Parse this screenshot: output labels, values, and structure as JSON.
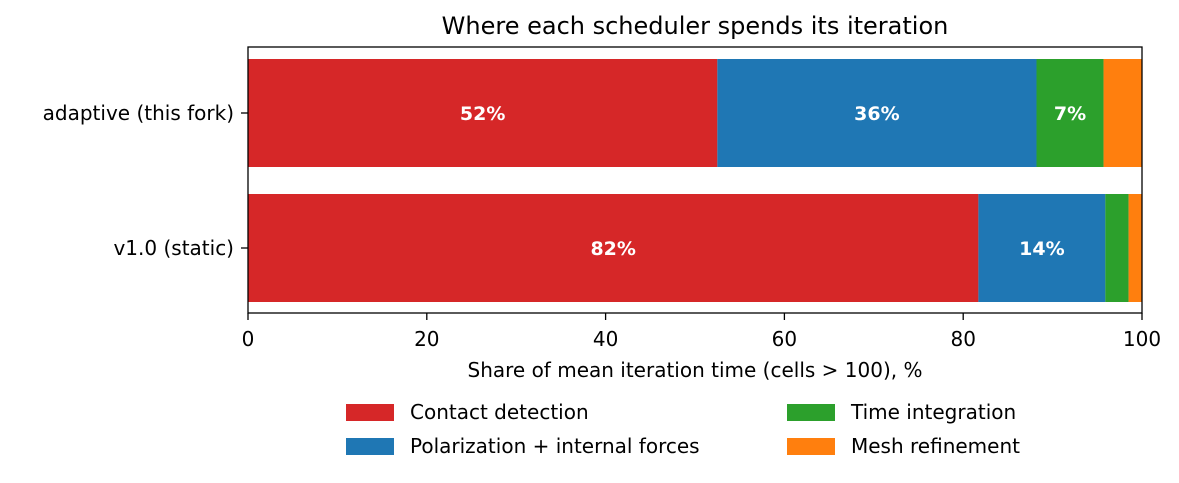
{
  "chart_data": {
    "type": "bar",
    "orientation": "horizontal",
    "stacked": true,
    "title": "Where each scheduler spends its iteration",
    "xlabel": "Share of mean iteration time (cells > 100), %",
    "ylabel": "",
    "xlim": [
      0,
      100
    ],
    "xticks": [
      0,
      20,
      40,
      60,
      80,
      100
    ],
    "grid": false,
    "legend_placement": "bottom-center",
    "categories": [
      "adaptive (this fork)",
      "v1.0 (static)"
    ],
    "series": [
      {
        "name": "Contact detection",
        "color": "#d62728",
        "values": [
          52.5,
          81.7
        ],
        "labels": [
          "52%",
          "82%"
        ]
      },
      {
        "name": "Polarization + internal forces",
        "color": "#1f77b4",
        "values": [
          35.7,
          14.2
        ],
        "labels": [
          "36%",
          "14%"
        ]
      },
      {
        "name": "Time integration",
        "color": "#2ca02c",
        "values": [
          7.5,
          2.6
        ],
        "labels": [
          "7%",
          ""
        ]
      },
      {
        "name": "Mesh refinement",
        "color": "#ff7f0e",
        "values": [
          4.3,
          1.5
        ],
        "labels": [
          "",
          ""
        ]
      }
    ]
  }
}
